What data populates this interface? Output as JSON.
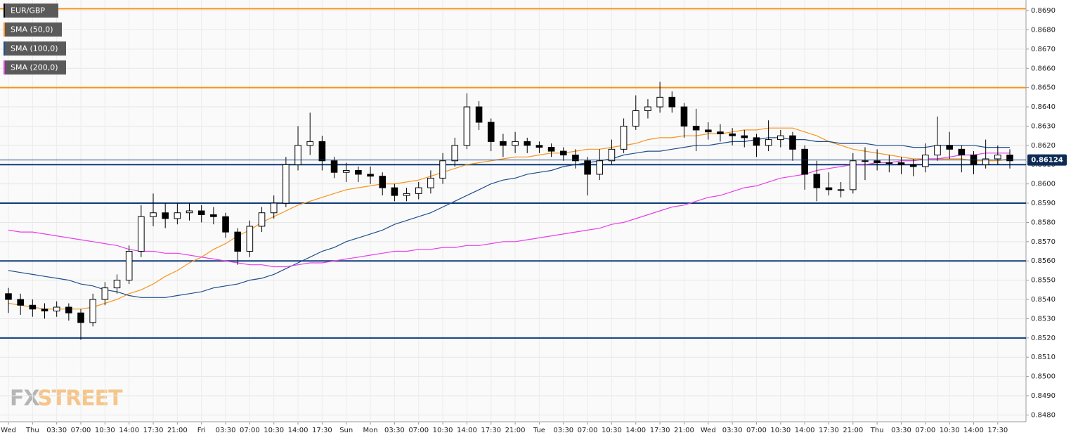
{
  "chart_data": {
    "type": "candlestick",
    "watermark": {
      "left": "FX",
      "right": "STREET"
    },
    "categories": [
      "Wed",
      null,
      "Thu",
      null,
      "03:30",
      null,
      "07:00",
      null,
      "10:30",
      null,
      "14:00",
      null,
      "17:30",
      null,
      "21:00",
      null,
      "Fri",
      null,
      "03:30",
      null,
      "07:00",
      null,
      "10:30",
      null,
      "14:00",
      null,
      "17:30",
      null,
      "Sun",
      null,
      "Mon",
      null,
      "03:30",
      null,
      "07:00",
      null,
      "10:30",
      null,
      "14:00",
      null,
      "17:30",
      null,
      "21:00",
      null,
      "Tue",
      null,
      "03:30",
      null,
      "07:00",
      null,
      "10:30",
      null,
      "14:00",
      null,
      "17:30",
      null,
      "21:00",
      null,
      "Wed",
      null,
      "03:30",
      null,
      "07:00",
      null,
      "10:30",
      null,
      "14:00",
      null,
      "17:30",
      null,
      "21:00",
      null,
      "Thu",
      null,
      "03:30",
      null,
      "07:00",
      null,
      "10:30",
      null,
      "14:00",
      null,
      "17:30",
      null
    ],
    "series": [
      {
        "name": "EUR/GBP",
        "color": "#000000",
        "up_color": "#ffffff",
        "down_color": "#000000",
        "open": [
          0.8543,
          0.854,
          0.8537,
          0.8535,
          0.8534,
          0.8536,
          0.8533,
          0.8528,
          0.854,
          0.8546,
          0.855,
          0.8565,
          0.8583,
          0.8585,
          0.8582,
          0.8585,
          0.8586,
          0.8584,
          0.8583,
          0.8575,
          0.8565,
          0.8578,
          0.8585,
          0.859,
          0.861,
          0.862,
          0.8622,
          0.8612,
          0.8606,
          0.8607,
          0.8605,
          0.8604,
          0.8598,
          0.8594,
          0.8595,
          0.8598,
          0.8603,
          0.8612,
          0.862,
          0.864,
          0.8632,
          0.8622,
          0.862,
          0.8622,
          0.862,
          0.8619,
          0.8617,
          0.8615,
          0.8612,
          0.8605,
          0.8612,
          0.8618,
          0.863,
          0.8638,
          0.864,
          0.8645,
          0.864,
          0.863,
          0.8628,
          0.8627,
          0.8626,
          0.8625,
          0.8624,
          0.862,
          0.8623,
          0.8625,
          0.8618,
          0.8605,
          0.8598,
          0.8597,
          0.8597,
          0.8612,
          0.8612,
          0.8611,
          0.8611,
          0.861,
          0.8609,
          0.8615,
          0.862,
          0.8618,
          0.8615,
          0.861,
          0.8613,
          0.8615
        ],
        "high": [
          0.8546,
          0.8543,
          0.854,
          0.8538,
          0.8539,
          0.8538,
          0.8535,
          0.8543,
          0.8549,
          0.8553,
          0.8568,
          0.8589,
          0.8595,
          0.859,
          0.859,
          0.859,
          0.8589,
          0.8588,
          0.8585,
          0.8577,
          0.8581,
          0.8588,
          0.8594,
          0.8614,
          0.863,
          0.8637,
          0.8625,
          0.8614,
          0.8611,
          0.8609,
          0.8609,
          0.8606,
          0.86,
          0.8598,
          0.8601,
          0.8607,
          0.8616,
          0.8624,
          0.8647,
          0.8643,
          0.8634,
          0.8626,
          0.8627,
          0.8624,
          0.8622,
          0.8621,
          0.8619,
          0.8618,
          0.8614,
          0.8618,
          0.8623,
          0.8634,
          0.8646,
          0.8644,
          0.8653,
          0.8648,
          0.8642,
          0.8639,
          0.8632,
          0.8631,
          0.8629,
          0.8628,
          0.8626,
          0.8633,
          0.8628,
          0.8627,
          0.862,
          0.8612,
          0.8606,
          0.8601,
          0.8616,
          0.8619,
          0.8618,
          0.8615,
          0.8614,
          0.8613,
          0.8621,
          0.8635,
          0.8627,
          0.862,
          0.8617,
          0.8623,
          0.862,
          0.8618
        ],
        "low": [
          0.8533,
          0.8532,
          0.8531,
          0.853,
          0.8531,
          0.8529,
          0.8519,
          0.8526,
          0.8537,
          0.8543,
          0.8548,
          0.8562,
          0.8578,
          0.8577,
          0.8579,
          0.8581,
          0.858,
          0.8579,
          0.8572,
          0.8558,
          0.8562,
          0.8575,
          0.8582,
          0.8588,
          0.8607,
          0.8615,
          0.8607,
          0.8603,
          0.8601,
          0.8601,
          0.86,
          0.8594,
          0.8591,
          0.8591,
          0.8592,
          0.8595,
          0.86,
          0.8609,
          0.8618,
          0.8628,
          0.8617,
          0.8614,
          0.8616,
          0.8616,
          0.8616,
          0.8614,
          0.8612,
          0.8608,
          0.8594,
          0.8602,
          0.861,
          0.8616,
          0.8628,
          0.8634,
          0.8637,
          0.8637,
          0.8624,
          0.8617,
          0.8623,
          0.8622,
          0.862,
          0.8619,
          0.8614,
          0.8617,
          0.8619,
          0.8612,
          0.8597,
          0.8591,
          0.8594,
          0.8593,
          0.8595,
          0.8602,
          0.8607,
          0.8606,
          0.8605,
          0.8604,
          0.8606,
          0.8612,
          0.8613,
          0.8606,
          0.8605,
          0.8608,
          0.861,
          0.8608
        ],
        "close": [
          0.854,
          0.8537,
          0.8535,
          0.8534,
          0.8536,
          0.8533,
          0.8528,
          0.854,
          0.8546,
          0.855,
          0.8565,
          0.8583,
          0.8585,
          0.8582,
          0.8585,
          0.8586,
          0.8584,
          0.8583,
          0.8575,
          0.8565,
          0.8578,
          0.8585,
          0.859,
          0.861,
          0.862,
          0.8622,
          0.8612,
          0.8606,
          0.8607,
          0.8605,
          0.8604,
          0.8598,
          0.8594,
          0.8595,
          0.8598,
          0.8603,
          0.8612,
          0.862,
          0.864,
          0.8632,
          0.8622,
          0.862,
          0.8622,
          0.862,
          0.8619,
          0.8617,
          0.8615,
          0.8612,
          0.8605,
          0.8612,
          0.8618,
          0.863,
          0.8638,
          0.864,
          0.8645,
          0.864,
          0.863,
          0.8628,
          0.8627,
          0.8626,
          0.8625,
          0.8624,
          0.862,
          0.8623,
          0.8625,
          0.8618,
          0.8605,
          0.8598,
          0.8597,
          0.8597,
          0.8612,
          0.8612,
          0.8611,
          0.8611,
          0.861,
          0.8609,
          0.8615,
          0.862,
          0.8618,
          0.8615,
          0.861,
          0.8613,
          0.8615,
          0.8612
        ]
      },
      {
        "name": "SMA (50,0)",
        "color": "#f7941d",
        "values": [
          0.8538,
          0.8537,
          0.8536,
          0.8535,
          0.8535,
          0.8535,
          0.8535,
          0.8536,
          0.8538,
          0.854,
          0.8543,
          0.8545,
          0.8548,
          0.8552,
          0.8555,
          0.8559,
          0.8562,
          0.8566,
          0.8569,
          0.8573,
          0.8576,
          0.858,
          0.8583,
          0.8586,
          0.8589,
          0.8591,
          0.8593,
          0.8595,
          0.8597,
          0.8598,
          0.8599,
          0.86,
          0.86,
          0.8601,
          0.8602,
          0.8604,
          0.8606,
          0.8608,
          0.861,
          0.8611,
          0.8612,
          0.8613,
          0.8614,
          0.8614,
          0.8615,
          0.8616,
          0.8616,
          0.8617,
          0.8618,
          0.8618,
          0.8619,
          0.862,
          0.8621,
          0.8623,
          0.8624,
          0.8624,
          0.8625,
          0.8625,
          0.8626,
          0.8626,
          0.8627,
          0.8628,
          0.8628,
          0.8629,
          0.8629,
          0.8629,
          0.8627,
          0.8625,
          0.8622,
          0.862,
          0.8618,
          0.8617,
          0.8616,
          0.8615,
          0.8614,
          0.8613,
          0.8613,
          0.8613,
          0.8613,
          0.8613,
          0.8612,
          0.8612,
          0.8612,
          0.8613
        ]
      },
      {
        "name": "SMA (100,0)",
        "color": "#1f4e8c",
        "values": [
          0.8555,
          0.8554,
          0.8553,
          0.8552,
          0.8551,
          0.855,
          0.8548,
          0.8547,
          0.8545,
          0.8544,
          0.8542,
          0.8541,
          0.8541,
          0.8541,
          0.8542,
          0.8543,
          0.8544,
          0.8546,
          0.8547,
          0.8548,
          0.855,
          0.8551,
          0.8553,
          0.8556,
          0.8559,
          0.8562,
          0.8565,
          0.8567,
          0.857,
          0.8572,
          0.8574,
          0.8576,
          0.8579,
          0.8581,
          0.8583,
          0.8585,
          0.8588,
          0.8591,
          0.8594,
          0.8597,
          0.86,
          0.8602,
          0.8603,
          0.8605,
          0.8606,
          0.8607,
          0.8609,
          0.861,
          0.8611,
          0.8612,
          0.8613,
          0.8615,
          0.8616,
          0.8617,
          0.8617,
          0.8618,
          0.8619,
          0.862,
          0.862,
          0.8621,
          0.8622,
          0.8622,
          0.8623,
          0.8624,
          0.8624,
          0.8623,
          0.8623,
          0.8622,
          0.8622,
          0.8621,
          0.8621,
          0.8621,
          0.862,
          0.862,
          0.862,
          0.8619,
          0.8619,
          0.862,
          0.862,
          0.862,
          0.862,
          0.8619,
          0.8619,
          0.8619
        ]
      },
      {
        "name": "SMA (200,0)",
        "color": "#e83ee8",
        "values": [
          0.8576,
          0.8575,
          0.8575,
          0.8574,
          0.8573,
          0.8572,
          0.8571,
          0.857,
          0.8569,
          0.8568,
          0.8566,
          0.8565,
          0.8565,
          0.8564,
          0.8564,
          0.8563,
          0.8562,
          0.8561,
          0.856,
          0.8559,
          0.8558,
          0.8558,
          0.8557,
          0.8557,
          0.8558,
          0.8559,
          0.8559,
          0.856,
          0.8561,
          0.8562,
          0.8563,
          0.8564,
          0.8565,
          0.8565,
          0.8566,
          0.8566,
          0.8567,
          0.8567,
          0.8568,
          0.8568,
          0.8569,
          0.857,
          0.857,
          0.8571,
          0.8572,
          0.8573,
          0.8574,
          0.8575,
          0.8576,
          0.8577,
          0.8579,
          0.858,
          0.8582,
          0.8584,
          0.8586,
          0.8588,
          0.8589,
          0.8591,
          0.8593,
          0.8594,
          0.8596,
          0.8598,
          0.8599,
          0.8601,
          0.8603,
          0.8604,
          0.8605,
          0.8607,
          0.8608,
          0.8609,
          0.861,
          0.861,
          0.8611,
          0.8611,
          0.8612,
          0.8612,
          0.8613,
          0.8613,
          0.8614,
          0.8615,
          0.8615,
          0.8616,
          0.8616,
          0.8616
        ]
      }
    ],
    "levels": [
      {
        "value": 0.8691,
        "color": "#f7941d"
      },
      {
        "value": 0.865,
        "color": "#f7941d"
      },
      {
        "value": 0.861,
        "color": "#0d3b7a"
      },
      {
        "value": 0.859,
        "color": "#0d3b7a"
      },
      {
        "value": 0.856,
        "color": "#0d3b7a"
      },
      {
        "value": 0.852,
        "color": "#0d3b7a"
      }
    ],
    "last_price": 0.86124,
    "ylim": [
      0.84765,
      0.86955
    ],
    "yticks": [
      {
        "value": 0.848,
        "label": "0.8480"
      },
      {
        "value": 0.849,
        "label": "0.8490"
      },
      {
        "value": 0.85,
        "label": "0.8500"
      },
      {
        "value": 0.851,
        "label": "0.8510"
      },
      {
        "value": 0.852,
        "label": "0.8520"
      },
      {
        "value": 0.853,
        "label": "0.8530"
      },
      {
        "value": 0.854,
        "label": "0.8540"
      },
      {
        "value": 0.855,
        "label": "0.8550"
      },
      {
        "value": 0.856,
        "label": "0.8560"
      },
      {
        "value": 0.857,
        "label": "0.8570"
      },
      {
        "value": 0.858,
        "label": "0.8580"
      },
      {
        "value": 0.859,
        "label": "0.8590"
      },
      {
        "value": 0.86,
        "label": "0.8600"
      },
      {
        "value": 0.861,
        "label": "0.8610"
      },
      {
        "value": 0.862,
        "label": "0.8620"
      },
      {
        "value": 0.863,
        "label": "0.8630"
      },
      {
        "value": 0.864,
        "label": "0.8640"
      },
      {
        "value": 0.865,
        "label": "0.8650"
      },
      {
        "value": 0.866,
        "label": "0.8660"
      },
      {
        "value": 0.867,
        "label": "0.8670"
      },
      {
        "value": 0.868,
        "label": "0.8680"
      },
      {
        "value": 0.869,
        "label": "0.8690"
      }
    ],
    "grid": true
  }
}
